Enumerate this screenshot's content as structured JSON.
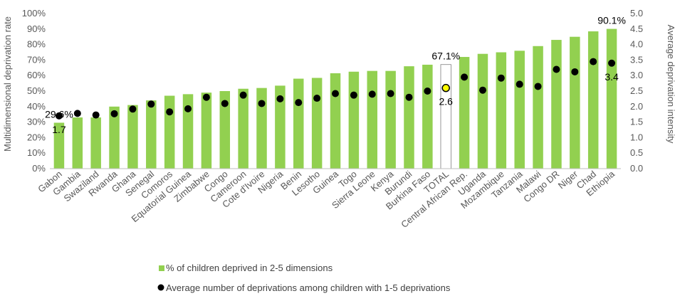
{
  "chart_data": {
    "type": "bar",
    "categories": [
      "Gabon",
      "Gambia",
      "Swaziland",
      "Rwanda",
      "Ghana",
      "Senegal",
      "Comoros",
      "Equatorial Guinea",
      "Zimbabwe",
      "Congo",
      "Cameroon",
      "Cote d'Ivoire",
      "Nigeria",
      "Benin",
      "Lesotho",
      "Guinea",
      "Togo",
      "Sierra Leone",
      "Kenya",
      "Burundi",
      "Burkina Faso",
      "TOTAL",
      "Central African Rep.",
      "Uganda",
      "Mozambique",
      "Tanzania",
      "Malawi",
      "Congo DR",
      "Niger",
      "Chad",
      "Ethiopia"
    ],
    "highlight_category": "TOTAL",
    "series": [
      {
        "name": "% of children deprived in 2-5 dimensions",
        "kind": "bar",
        "axis": "left",
        "color": "#92D050",
        "highlight_color": "#FFFFFF",
        "values": [
          29.6,
          33,
          33,
          40,
          41,
          44,
          47,
          48,
          49,
          50,
          51.5,
          52,
          53.5,
          58,
          58.5,
          61.5,
          62.5,
          63,
          63,
          66,
          67,
          67.1,
          72,
          74,
          75,
          76,
          79,
          83,
          85,
          88.5,
          90.1
        ]
      },
      {
        "name": "Average number of deprivations among children with 1-5 deprivations",
        "kind": "scatter",
        "axis": "right",
        "color": "#000000",
        "highlight_color": "#FFFF00",
        "values": [
          1.7,
          1.78,
          1.73,
          1.77,
          1.92,
          2.08,
          1.83,
          1.93,
          2.3,
          2.1,
          2.37,
          2.1,
          2.25,
          2.13,
          2.27,
          2.42,
          2.37,
          2.4,
          2.42,
          2.3,
          2.5,
          2.6,
          2.95,
          2.53,
          2.92,
          2.72,
          2.65,
          3.2,
          3.12,
          3.45,
          3.4
        ]
      }
    ],
    "ylabel": "Multidimensional deprivation rate",
    "y2label": "Average deprivation intensity",
    "ylim": [
      0,
      100
    ],
    "y2lim": [
      0,
      5
    ],
    "yticks": [
      "0%",
      "10%",
      "20%",
      "30%",
      "40%",
      "50%",
      "60%",
      "70%",
      "80%",
      "90%",
      "100%"
    ],
    "y2ticks": [
      "0.0",
      "0.5",
      "1.0",
      "1.5",
      "2.0",
      "2.5",
      "3.0",
      "3.5",
      "4.0",
      "4.5",
      "5.0"
    ],
    "data_labels": [
      {
        "series": 0,
        "category": "Gabon",
        "text": "29.6%"
      },
      {
        "series": 1,
        "category": "Gabon",
        "text": "1.7"
      },
      {
        "series": 0,
        "category": "TOTAL",
        "text": "67.1%"
      },
      {
        "series": 1,
        "category": "TOTAL",
        "text": "2.6"
      },
      {
        "series": 0,
        "category": "Ethiopia",
        "text": "90.1%"
      },
      {
        "series": 1,
        "category": "Ethiopia",
        "text": "3.4"
      }
    ],
    "grid": false,
    "legend_position": "bottom"
  }
}
